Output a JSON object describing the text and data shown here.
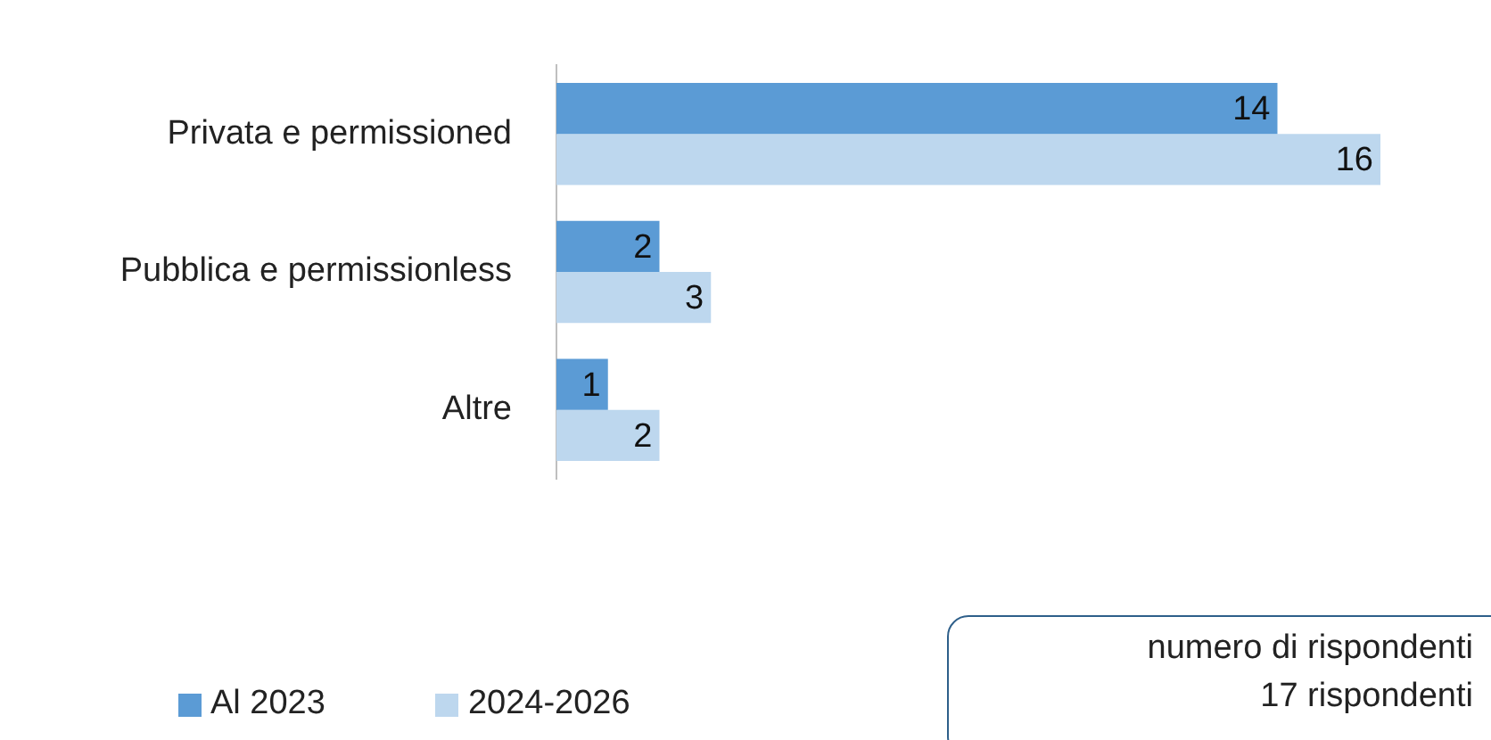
{
  "chart_data": {
    "type": "bar",
    "orientation": "horizontal",
    "categories": [
      "Privata e permissioned",
      "Pubblica e permissionless",
      "Altre"
    ],
    "series": [
      {
        "name": "Al 2023",
        "color": "#5b9bd5",
        "values": [
          14,
          2,
          1
        ]
      },
      {
        "name": "2024-2026",
        "color": "#bdd7ee",
        "values": [
          16,
          3,
          2
        ]
      }
    ],
    "xlim": [
      0,
      16
    ],
    "data_labels": true,
    "legend": "bottom left",
    "tick_labels": "y",
    "annotations": [
      "numero di rispondenti",
      "17 rispondenti"
    ]
  }
}
